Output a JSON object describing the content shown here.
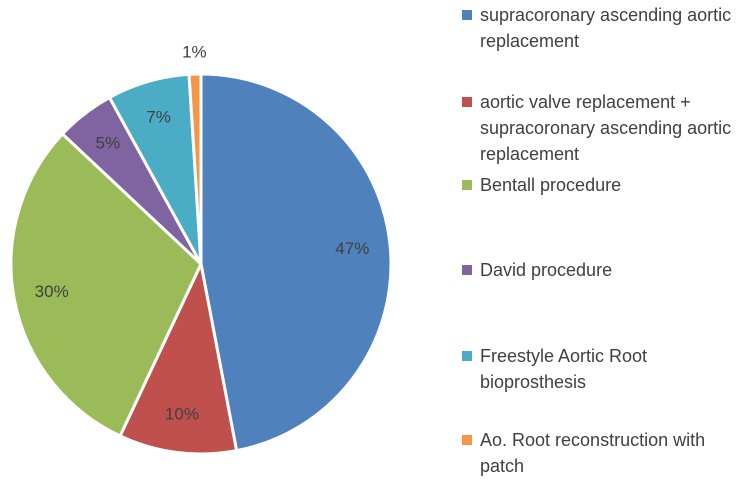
{
  "chart_data": {
    "type": "pie",
    "categories": [
      "supracoronary ascending aortic replacement",
      "aortic valve replacement + supracoronary ascending aortic replacement",
      "Bentall procedure",
      "David procedure",
      "Freestyle Aortic Root bioprosthesis",
      "Ao. Root reconstruction with patch"
    ],
    "values": [
      47,
      10,
      30,
      5,
      7,
      1
    ],
    "value_labels": [
      "47%",
      "10%",
      "30%",
      "5%",
      "7%",
      "1%"
    ],
    "colors": [
      "#4f81bd",
      "#c0504d",
      "#9bbb59",
      "#8064a2",
      "#4bacc6",
      "#f79646"
    ],
    "legend": "right"
  }
}
